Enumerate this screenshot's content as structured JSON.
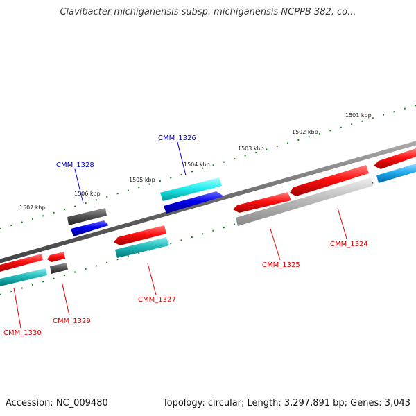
{
  "title": "Clavibacter michiganensis subsp. michiganensis NCPPB 382, co...",
  "footer": {
    "accession": "Accession: NC_009480",
    "topology": "Topology: circular; Length: 3,297,891 bp; Genes: 3,043"
  },
  "ticks": [
    "1507 kbp",
    "1506 kbp",
    "1505 kbp",
    "1504 kbp",
    "1503 kbp",
    "1502 kbp",
    "1501 kbp"
  ],
  "genes": [
    {
      "label": "CMM_1330",
      "label_color": "#dd0000"
    },
    {
      "label": "CMM_1329",
      "label_color": "#dd0000"
    },
    {
      "label": "CMM_1328",
      "label_color": "#0000cc"
    },
    {
      "label": "CMM_1327",
      "label_color": "#dd0000"
    },
    {
      "label": "CMM_1326",
      "label_color": "#0000cc"
    },
    {
      "label": "CMM_1325",
      "label_color": "#dd0000"
    },
    {
      "label": "CMM_1324",
      "label_color": "#dd0000"
    }
  ],
  "colors": {
    "backbone": "#777777",
    "tick_dots": "#1a7a1a",
    "red": "#ee1111",
    "blue": "#0000dd",
    "cyan": "#22dddd",
    "teal": "#22bbbb",
    "sky": "#22aaee",
    "dark_gray": "#555555",
    "light_gray": "#bbbbbb"
  }
}
